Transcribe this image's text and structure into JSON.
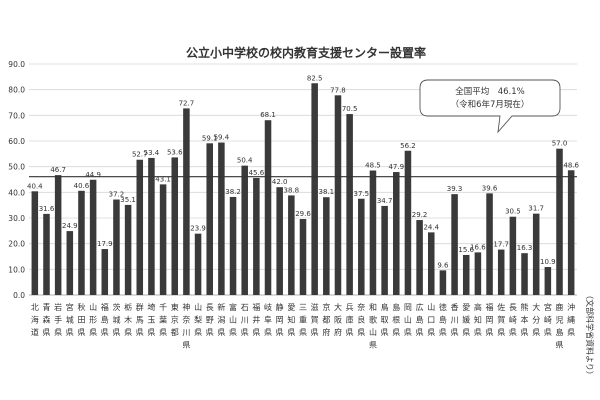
{
  "chart_data": {
    "type": "bar",
    "title": "公立小中学校の校内教育支援センター設置率",
    "categories": [
      "北海道",
      "青森県",
      "岩手県",
      "宮城県",
      "秋田県",
      "山形県",
      "福島県",
      "茨城県",
      "栃木県",
      "群馬県",
      "埼玉県",
      "千葉県",
      "東京都",
      "神奈川県",
      "山梨県",
      "長野県",
      "新潟県",
      "富山県",
      "石川県",
      "福井県",
      "岐阜県",
      "静岡県",
      "愛知県",
      "三重県",
      "滋賀県",
      "京都府",
      "大阪府",
      "兵庫県",
      "奈良県",
      "和歌山県",
      "鳥取県",
      "島根県",
      "岡山県",
      "広島県",
      "山口県",
      "徳島県",
      "香川県",
      "愛媛県",
      "高知県",
      "福岡県",
      "佐賀県",
      "長崎県",
      "熊本県",
      "大分県",
      "宮崎県",
      "鹿児島県",
      "沖縄県"
    ],
    "category_label_lines": [
      [
        "北",
        "海",
        "道"
      ],
      [
        "青",
        "森",
        "県"
      ],
      [
        "岩",
        "手",
        "県"
      ],
      [
        "宮",
        "城",
        "県"
      ],
      [
        "秋",
        "田",
        "県"
      ],
      [
        "山",
        "形",
        "県"
      ],
      [
        "福",
        "島",
        "県"
      ],
      [
        "茨",
        "城",
        "県"
      ],
      [
        "栃",
        "木",
        "県"
      ],
      [
        "群",
        "馬",
        "県"
      ],
      [
        "埼",
        "玉",
        "県"
      ],
      [
        "千",
        "葉",
        "県"
      ],
      [
        "東",
        "京",
        "都"
      ],
      [
        "神",
        "奈",
        "川",
        "県"
      ],
      [
        "山",
        "梨",
        "県"
      ],
      [
        "長",
        "野",
        "県"
      ],
      [
        "新",
        "潟",
        "県"
      ],
      [
        "富",
        "山",
        "県"
      ],
      [
        "石",
        "川",
        "県"
      ],
      [
        "福",
        "井",
        "県"
      ],
      [
        "岐",
        "阜",
        "県"
      ],
      [
        "静",
        "岡",
        "県"
      ],
      [
        "愛",
        "知",
        "県"
      ],
      [
        "三",
        "重",
        "県"
      ],
      [
        "滋",
        "賀",
        "県"
      ],
      [
        "京",
        "都",
        "府"
      ],
      [
        "大",
        "阪",
        "府"
      ],
      [
        "兵",
        "庫",
        "県"
      ],
      [
        "奈",
        "良",
        "県"
      ],
      [
        "和",
        "歌",
        "山",
        "県"
      ],
      [
        "鳥",
        "取",
        "県"
      ],
      [
        "島",
        "根",
        "県"
      ],
      [
        "岡",
        "山",
        "県"
      ],
      [
        "広",
        "島",
        "県"
      ],
      [
        "山",
        "口",
        "県"
      ],
      [
        "徳",
        "島",
        "県"
      ],
      [
        "香",
        "川",
        "県"
      ],
      [
        "愛",
        "媛",
        "県"
      ],
      [
        "高",
        "知",
        "県"
      ],
      [
        "福",
        "岡",
        "県"
      ],
      [
        "佐",
        "賀",
        "県"
      ],
      [
        "長",
        "崎",
        "県"
      ],
      [
        "熊",
        "本",
        "県"
      ],
      [
        "大",
        "分",
        "県"
      ],
      [
        "宮",
        "崎",
        "県"
      ],
      [
        "鹿",
        "児",
        "島",
        "県"
      ],
      [
        "沖",
        "縄",
        "県"
      ]
    ],
    "values": [
      40.4,
      31.6,
      46.7,
      24.9,
      40.6,
      44.9,
      17.9,
      37.2,
      35.1,
      52.7,
      53.4,
      43.1,
      53.6,
      72.7,
      23.9,
      59.1,
      59.4,
      38.2,
      50.4,
      45.6,
      68.1,
      42.0,
      38.8,
      29.6,
      82.5,
      38.1,
      77.8,
      70.5,
      37.5,
      48.5,
      34.7,
      47.9,
      56.2,
      29.2,
      24.4,
      9.6,
      39.3,
      15.6,
      16.6,
      39.6,
      17.7,
      30.5,
      16.3,
      31.7,
      10.9,
      57.0,
      48.6
    ],
    "value_labels": [
      "40.4",
      "31.6",
      "46.7",
      "24.9",
      "40.6",
      "44.9",
      "17.9",
      "37.2",
      "35.1",
      "52.7",
      "53.4",
      "43.1",
      "53.6",
      "72.7",
      "23.9",
      "59.1",
      "59.4",
      "38.2",
      "50.4",
      "45.6",
      "68.1",
      "42.0",
      "38.8",
      "29.6",
      "82.5",
      "38.1",
      "77.8",
      "70.5",
      "37.5",
      "48.5",
      "34.7",
      "47.9",
      "56.2",
      "29.2",
      "24.4",
      "9.6",
      "39.3",
      "15.6",
      "16.6",
      "39.6",
      "17.7",
      "30.5",
      "16.3",
      "31.7",
      "10.9",
      "57.0",
      "48.6"
    ],
    "ylim": [
      0,
      90
    ],
    "yticks": [
      0,
      10,
      20,
      30,
      40,
      50,
      60,
      70,
      80,
      90
    ],
    "ytick_labels": [
      "0.0",
      "10.0",
      "20.0",
      "30.0",
      "40.0",
      "50.0",
      "60.0",
      "70.0",
      "80.0",
      "90.0"
    ],
    "grid": true,
    "average_value": 46.1,
    "annotation": {
      "line1": "全国平均　46.1%",
      "line2": "（令和6年7月現在）"
    },
    "source": "（文部科学省資料より）",
    "colors": {
      "bar": "#3a3a3a",
      "average_line": "#333333",
      "grid": "#d6d6d6",
      "text": "#333333"
    }
  }
}
